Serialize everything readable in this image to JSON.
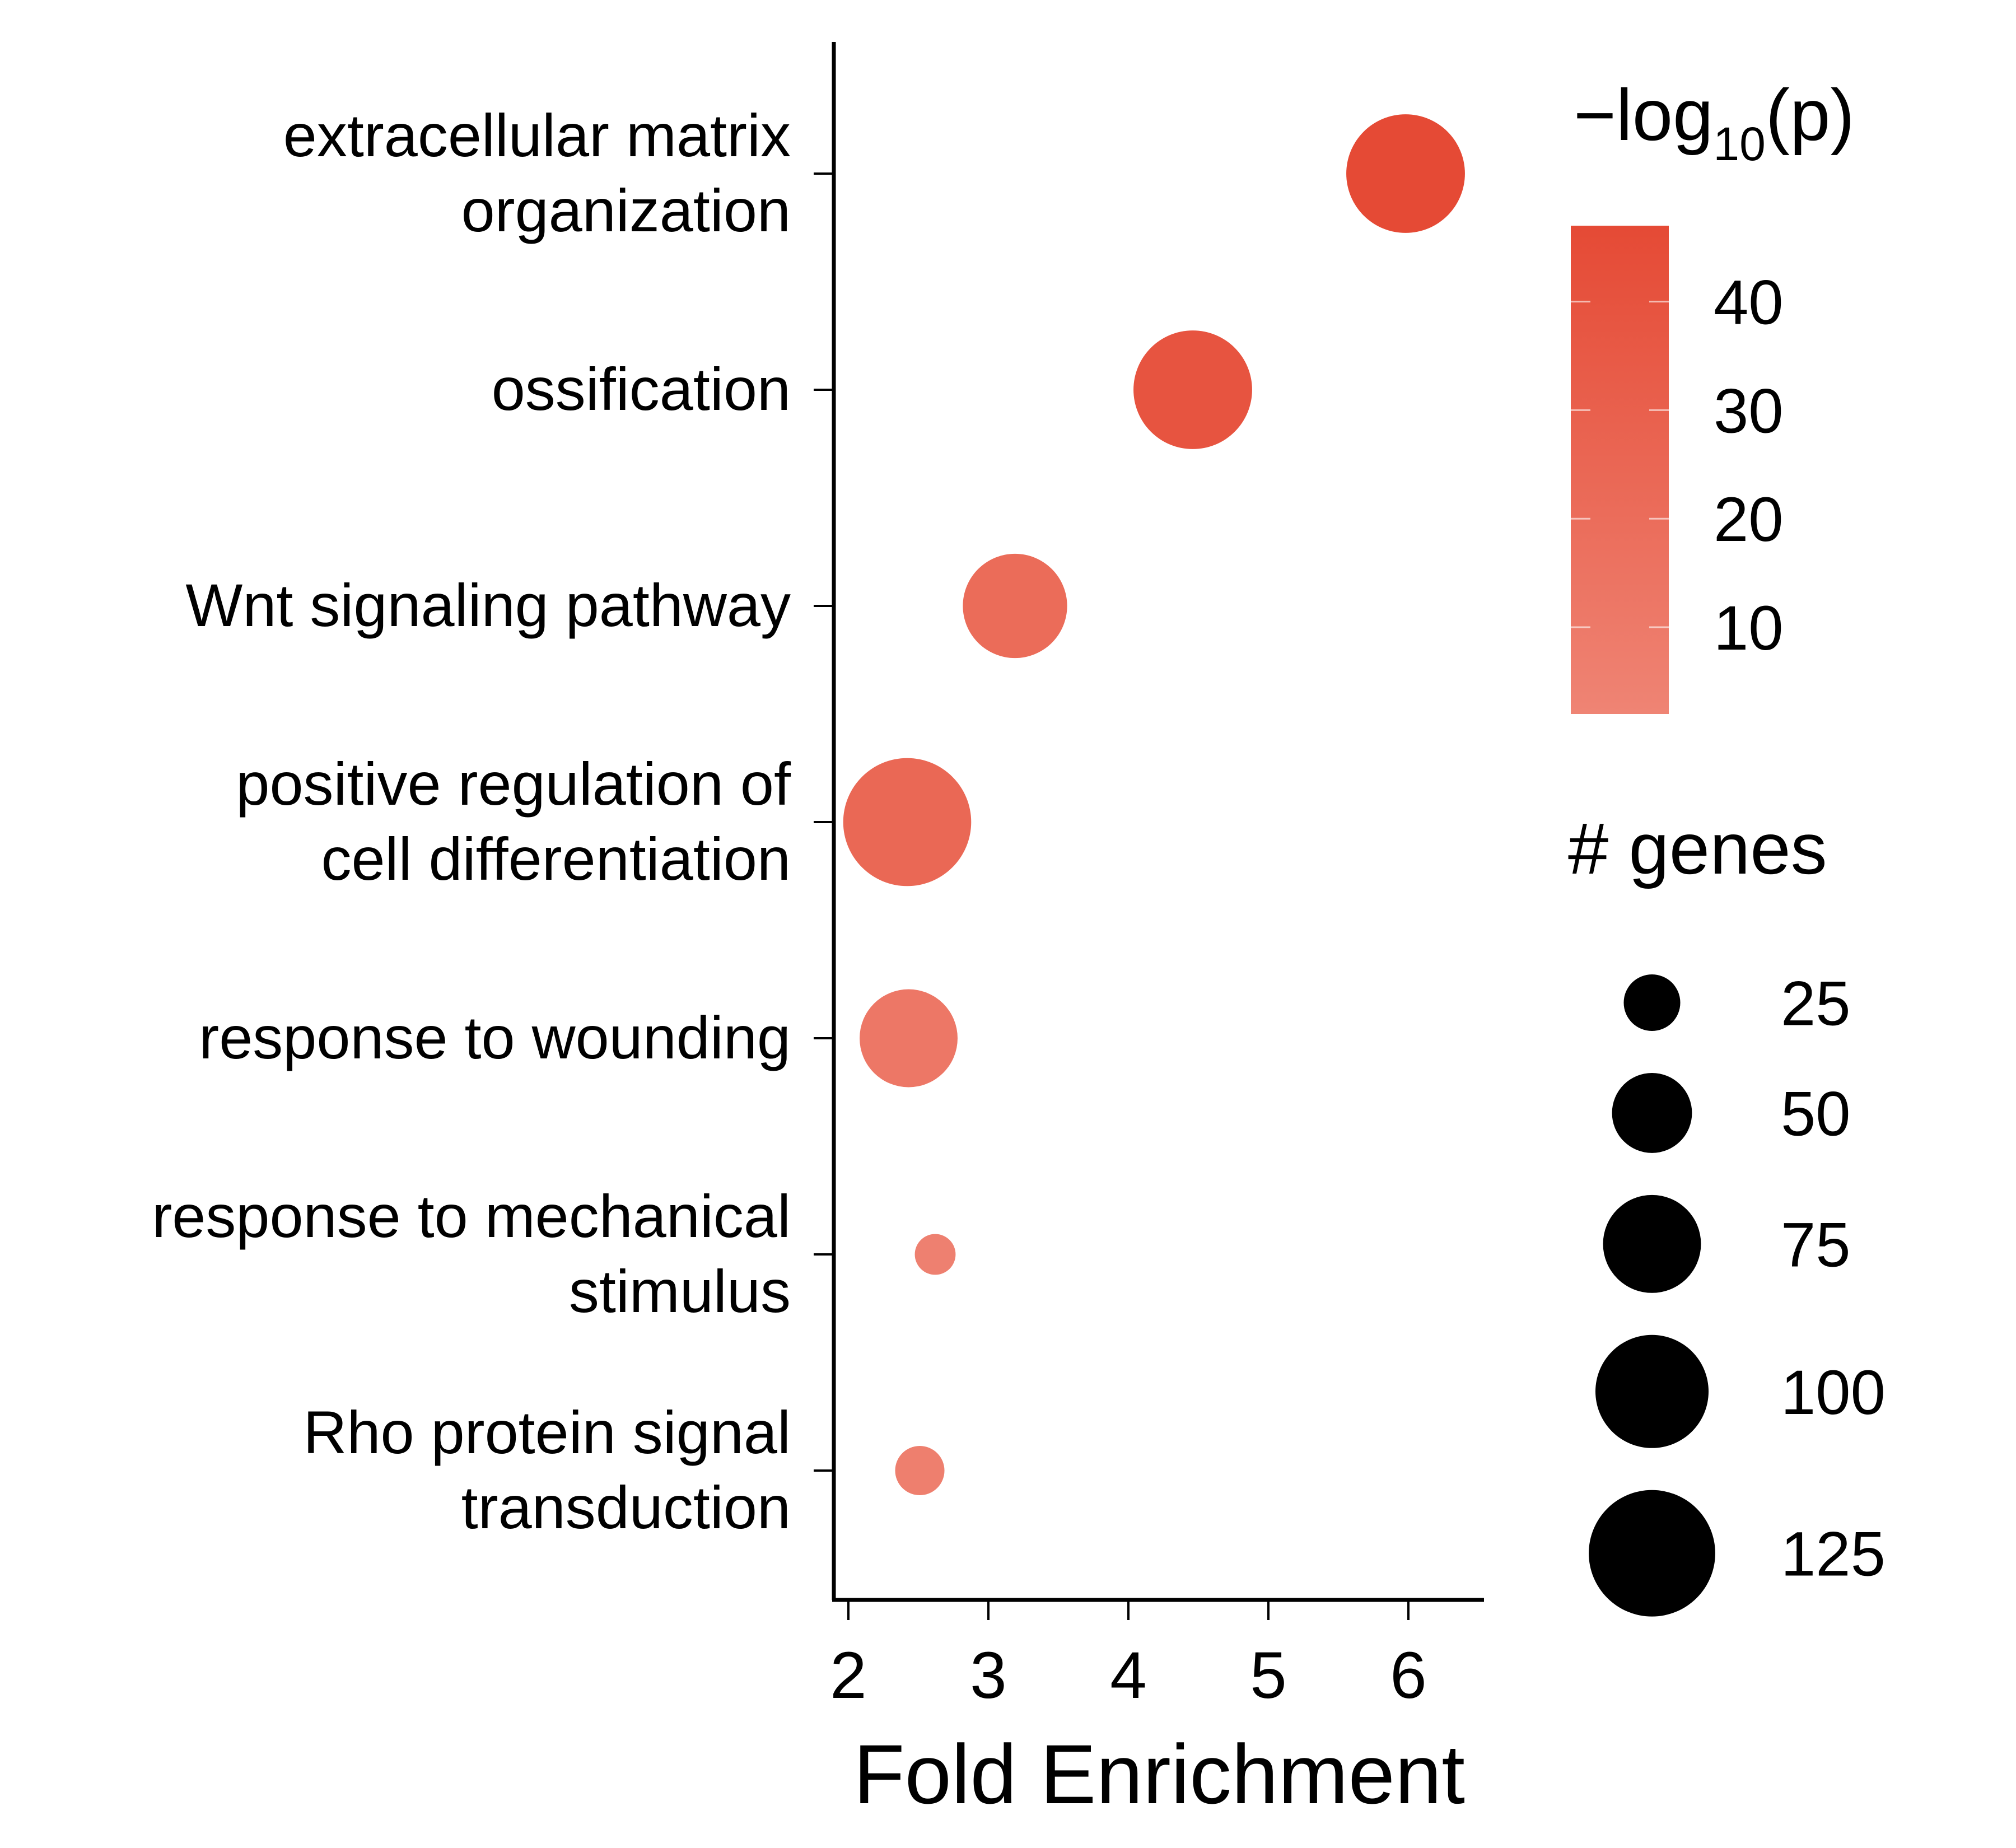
{
  "chart_data": {
    "type": "scatter",
    "xlabel": "Fold Enrichment",
    "ylabel": "",
    "xlim": [
      1.9,
      6.5
    ],
    "x_ticks": [
      "2",
      "3",
      "4",
      "5",
      "6"
    ],
    "categories": [
      [
        "extracellular matrix",
        "organization"
      ],
      [
        "ossification"
      ],
      [
        "Wnt signaling pathway"
      ],
      [
        "positive regulation of",
        "cell differentiation"
      ],
      [
        "response to wounding"
      ],
      [
        "response to mechanical",
        "stimulus"
      ],
      [
        "Rho protein signal",
        "transduction"
      ]
    ],
    "points": [
      {
        "fold_enrichment": 5.98,
        "neg_log10_p": 47,
        "genes": 110
      },
      {
        "fold_enrichment": 4.46,
        "neg_log10_p": 39,
        "genes": 110
      },
      {
        "fold_enrichment": 3.19,
        "neg_log10_p": 21,
        "genes": 85
      },
      {
        "fold_enrichment": 2.42,
        "neg_log10_p": 24,
        "genes": 128
      },
      {
        "fold_enrichment": 2.43,
        "neg_log10_p": 12,
        "genes": 75
      },
      {
        "fold_enrichment": 2.62,
        "neg_log10_p": 5,
        "genes": 13
      },
      {
        "fold_enrichment": 2.51,
        "neg_log10_p": 6,
        "genes": 19
      }
    ],
    "color_legend": {
      "title": "−log",
      "title_sub": "10",
      "title_suffix": "(p)",
      "range": [
        2,
        47
      ],
      "ticks": [
        "10",
        "20",
        "30",
        "40"
      ],
      "color_low": "#ef8474",
      "color_high": "#e54a35"
    },
    "size_legend": {
      "title": "# genes",
      "values": [
        "25",
        "50",
        "75",
        "100",
        "125"
      ]
    },
    "grid": false
  }
}
